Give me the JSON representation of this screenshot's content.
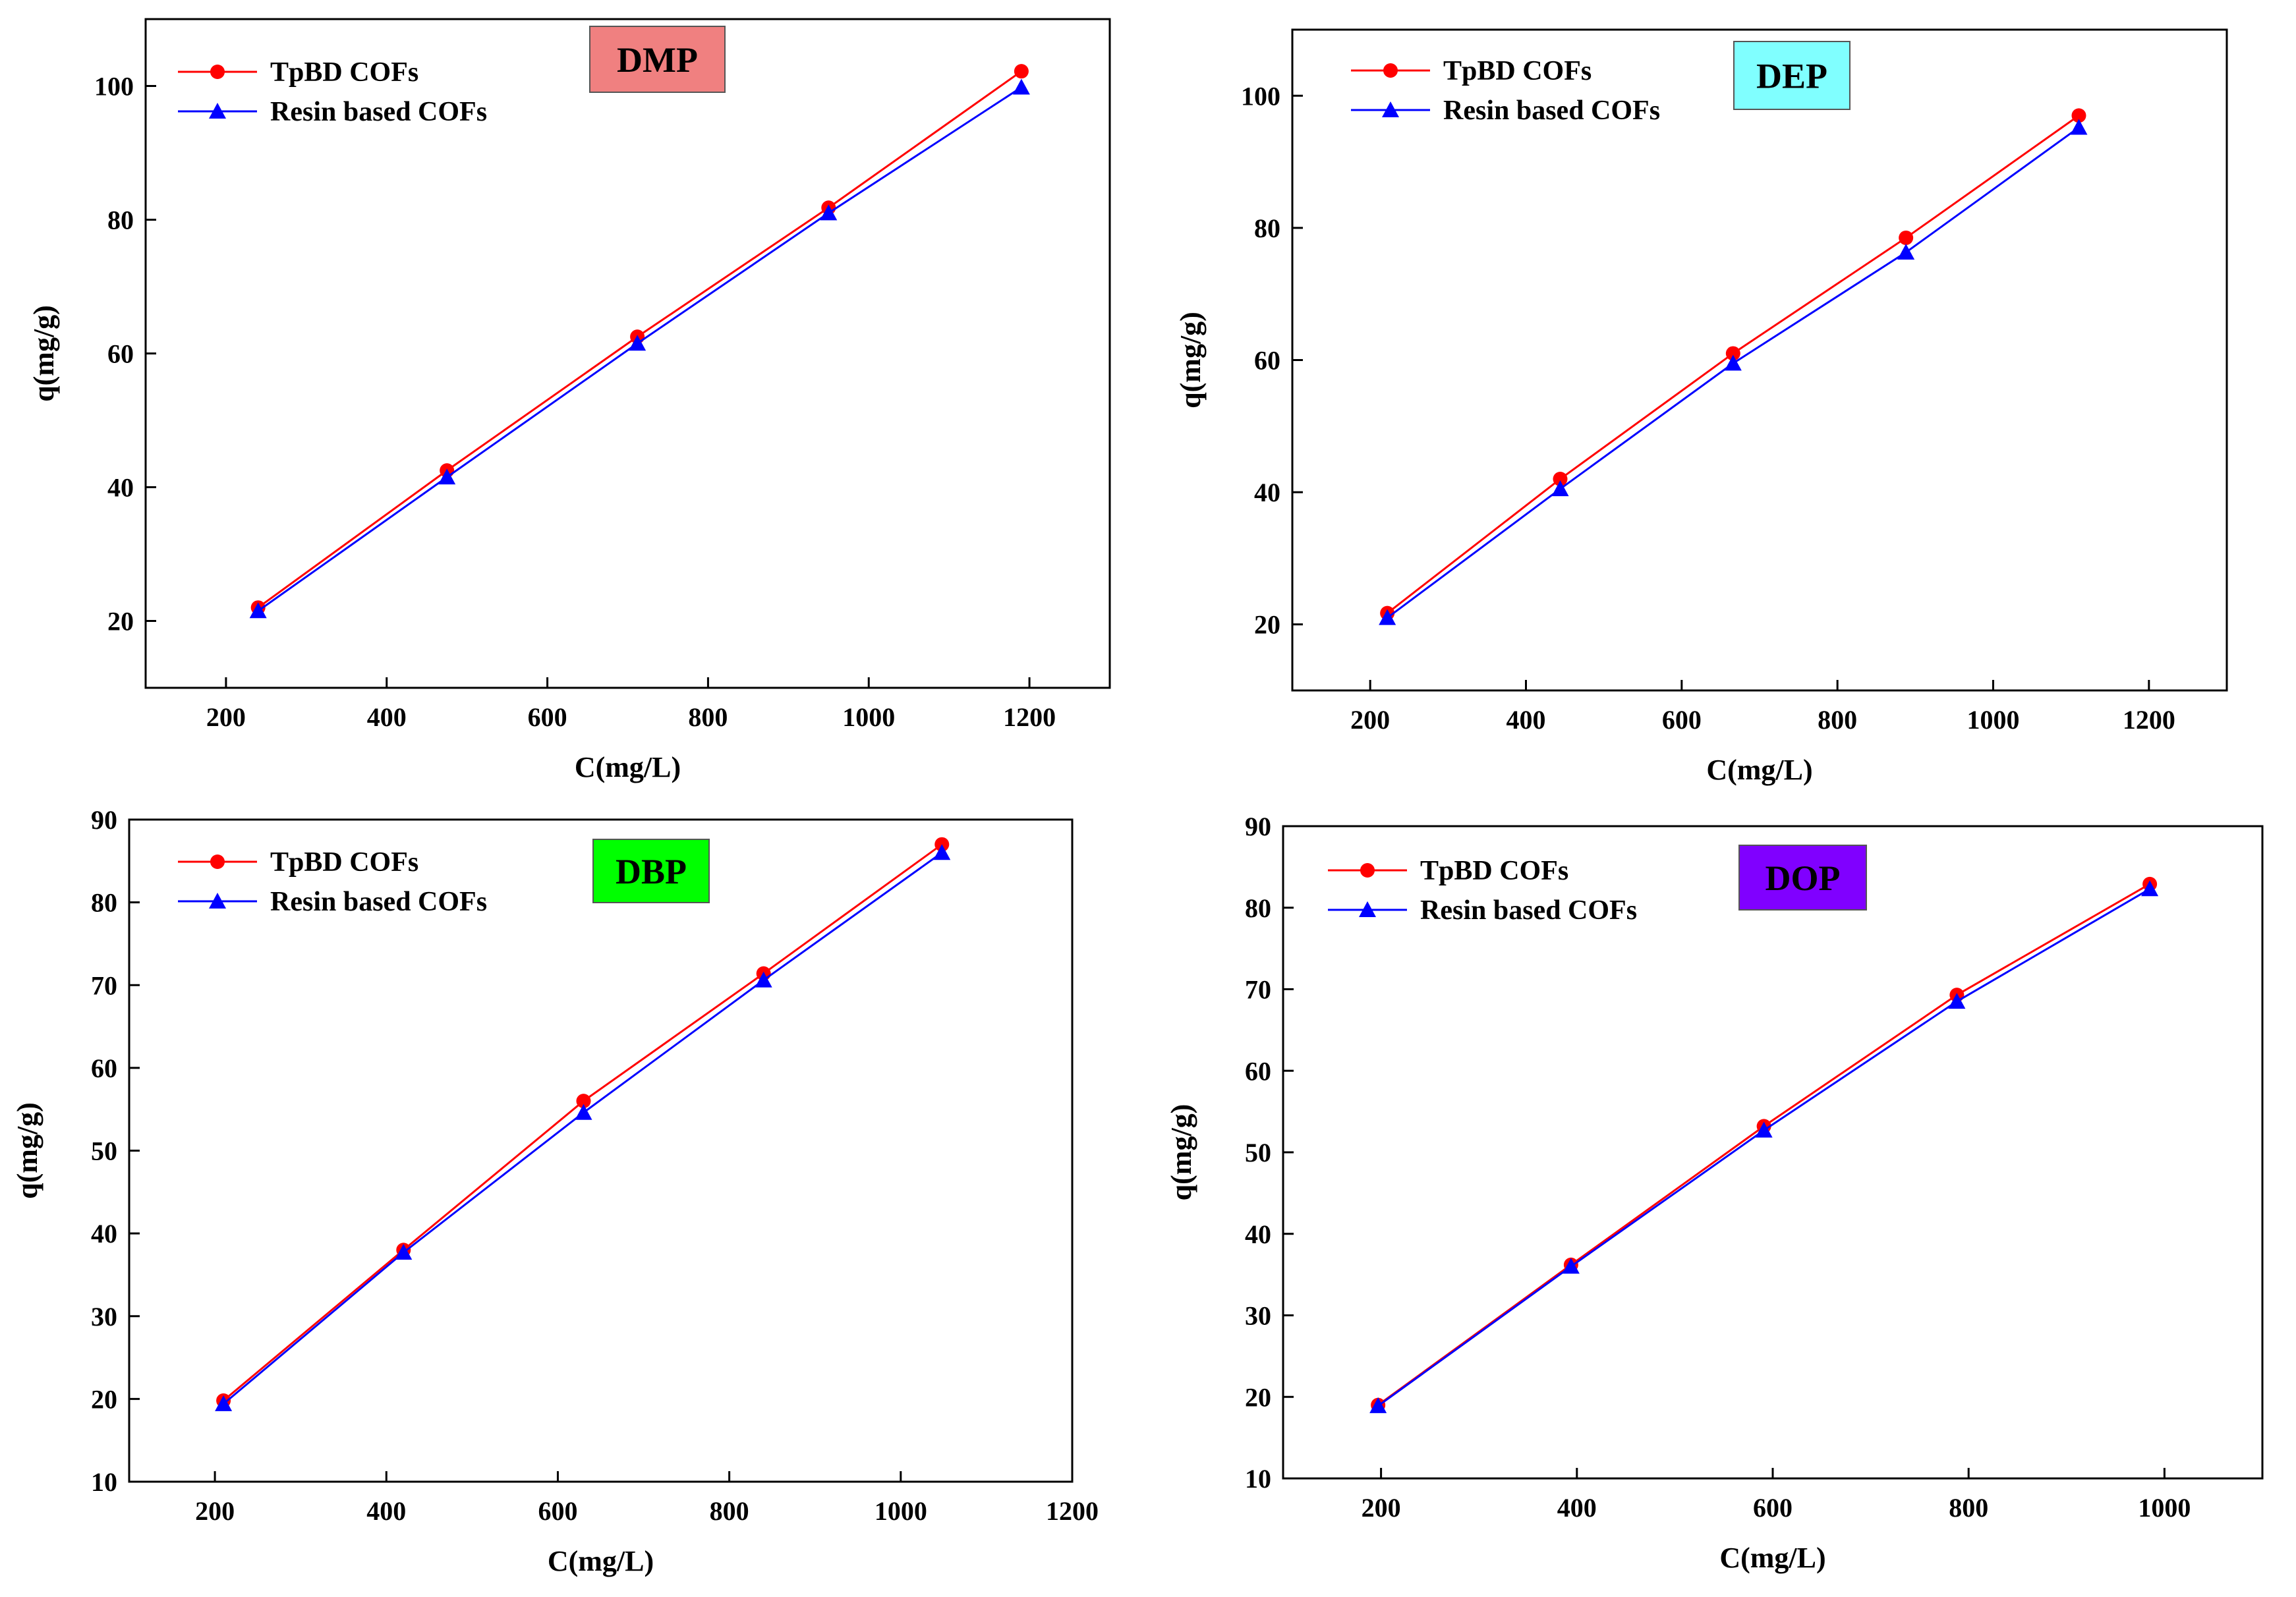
{
  "colors": {
    "series_1": "#ff0000",
    "series_2": "#0000ff",
    "axis": "#000000"
  },
  "chart_data": [
    {
      "type": "line",
      "badge": {
        "text": "DMP",
        "color": "#f08080"
      },
      "xlabel": "C(mg/L)",
      "ylabel": "q(mg/g)",
      "xlim": [
        100,
        1300
      ],
      "ylim": [
        10,
        110
      ],
      "xticks": [
        200,
        400,
        600,
        800,
        1000,
        1200
      ],
      "yticks": [
        20,
        40,
        60,
        80,
        100
      ],
      "series": [
        {
          "name": "TpBD COFs",
          "marker": "circle",
          "x": [
            240,
            475,
            712,
            950,
            1190
          ],
          "y": [
            22,
            42.5,
            62.5,
            81.8,
            102.2
          ]
        },
        {
          "name": "Resin based COFs",
          "marker": "triangle",
          "x": [
            240,
            475,
            712,
            950,
            1190
          ],
          "y": [
            21.5,
            41.5,
            61.5,
            81,
            99.8
          ]
        }
      ]
    },
    {
      "type": "line",
      "badge": {
        "text": "DEP",
        "color": "#80ffff"
      },
      "xlabel": "C(mg/L)",
      "ylabel": "q(mg/g)",
      "xlim": [
        100,
        1300
      ],
      "ylim": [
        10,
        110
      ],
      "xticks": [
        200,
        400,
        600,
        800,
        1000,
        1200
      ],
      "yticks": [
        20,
        40,
        60,
        80,
        100
      ],
      "series": [
        {
          "name": "TpBD COFs",
          "marker": "circle",
          "x": [
            222,
            444,
            666,
            888,
            1110
          ],
          "y": [
            21.7,
            42,
            61,
            78.5,
            97
          ]
        },
        {
          "name": "Resin based COFs",
          "marker": "triangle",
          "x": [
            222,
            444,
            666,
            888,
            1110
          ],
          "y": [
            21,
            40.5,
            59.5,
            76.3,
            95.2
          ]
        }
      ]
    },
    {
      "type": "line",
      "badge": {
        "text": "DBP",
        "color": "#00ff00"
      },
      "xlabel": "C(mg/L)",
      "ylabel": "q(mg/g)",
      "xlim": [
        100,
        1200
      ],
      "ylim": [
        10,
        90
      ],
      "xticks": [
        200,
        400,
        600,
        800,
        1000,
        1200
      ],
      "yticks": [
        10,
        20,
        30,
        40,
        50,
        60,
        70,
        80,
        90
      ],
      "series": [
        {
          "name": "TpBD COFs",
          "marker": "circle",
          "x": [
            210,
            420,
            630,
            840,
            1048
          ],
          "y": [
            19.8,
            38,
            56,
            71.4,
            87
          ]
        },
        {
          "name": "Resin based COFs",
          "marker": "triangle",
          "x": [
            210,
            420,
            630,
            840,
            1048
          ],
          "y": [
            19.4,
            37.7,
            54.6,
            70.6,
            86
          ]
        }
      ]
    },
    {
      "type": "line",
      "badge": {
        "text": "DOP",
        "color": "#8000ff"
      },
      "xlabel": "C(mg/L)",
      "ylabel": "q(mg/g)",
      "xlim": [
        100,
        1100
      ],
      "ylim": [
        10,
        90
      ],
      "xticks": [
        200,
        400,
        600,
        800,
        1000
      ],
      "yticks": [
        10,
        20,
        30,
        40,
        50,
        60,
        70,
        80,
        90
      ],
      "series": [
        {
          "name": "TpBD COFs",
          "marker": "circle",
          "x": [
            197,
            394,
            591,
            788,
            985
          ],
          "y": [
            19,
            36.2,
            53.2,
            69.3,
            82.9
          ]
        },
        {
          "name": "Resin based COFs",
          "marker": "triangle",
          "x": [
            197,
            394,
            591,
            788,
            985
          ],
          "y": [
            18.9,
            36,
            52.7,
            68.5,
            82.3
          ]
        }
      ]
    }
  ]
}
